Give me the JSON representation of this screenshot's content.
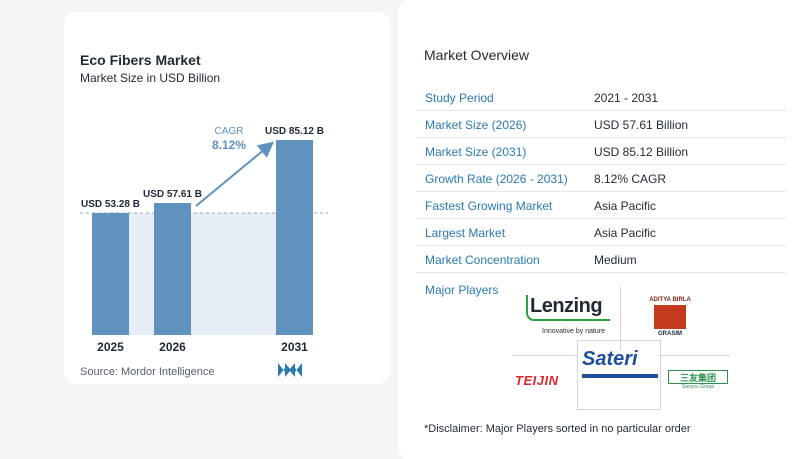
{
  "chart": {
    "title": "Eco Fibers Market",
    "subtitle": "Market Size in USD Billion",
    "source": "Source:  Mordor Intelligence",
    "cagr_label": "CAGR",
    "cagr_value": "8.12%"
  },
  "chart_data": {
    "type": "bar",
    "title": "Eco Fibers Market",
    "subtitle": "Market Size in USD Billion",
    "categories": [
      "2025",
      "2026",
      "2031"
    ],
    "values": [
      53.28,
      57.61,
      85.12
    ],
    "data_labels": [
      "USD 53.28 B",
      "USD 57.61 B",
      "USD 85.12 B"
    ],
    "annotation": {
      "label": "CAGR",
      "value": "8.12%"
    },
    "bar_color": "#5f93bd",
    "grid": false,
    "legend": "none"
  },
  "overview": {
    "title": "Market Overview",
    "rows": [
      {
        "key": "Study Period",
        "value": "2021 - 2031"
      },
      {
        "key": "Market Size (2026)",
        "value": "USD 57.61 Billion"
      },
      {
        "key": "Market Size (2031)",
        "value": "USD 85.12 Billion"
      },
      {
        "key": "Growth Rate (2026 - 2031)",
        "value": "8.12% CAGR"
      },
      {
        "key": "Fastest Growing Market",
        "value": "Asia Pacific"
      },
      {
        "key": "Largest Market",
        "value": "Asia Pacific"
      },
      {
        "key": "Market Concentration",
        "value": "Medium"
      }
    ],
    "players_title": "Major Players",
    "players": {
      "lenzing": {
        "name": "Lenzing",
        "tagline": "Innovative by nature"
      },
      "birla": {
        "top": "ADITYA BIRLA",
        "bottom": "GRASIM"
      },
      "sateri": {
        "name": "Sateri"
      },
      "teijin": {
        "name": "TEIJIN"
      },
      "sanyou": {
        "name": "三友集团",
        "sub": "Sanyou Group"
      }
    },
    "disclaimer": "*Disclaimer: Major Players sorted in no particular order"
  },
  "colors": {
    "bar": "#5f93bd",
    "accent_text": "#2a7ab0",
    "shade": "#e6edf4"
  }
}
